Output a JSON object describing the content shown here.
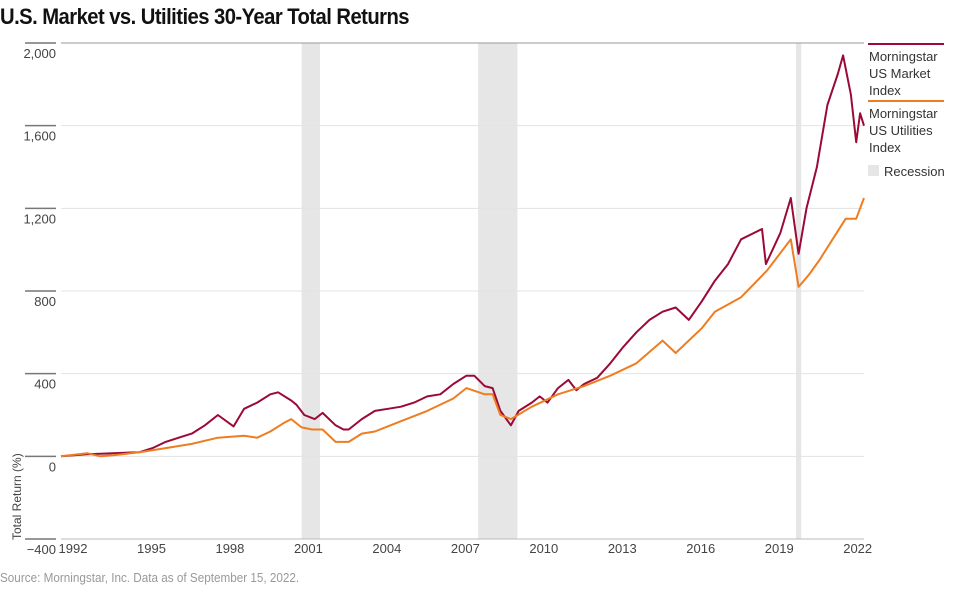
{
  "chart_data": {
    "type": "line",
    "title": "U.S. Market vs. Utilities 30-Year Total Returns",
    "ylabel": "Total Return (%)",
    "xlabel": "",
    "ylim": [
      -400,
      2000
    ],
    "yticks": [
      "2,000",
      "1,600",
      "1,200",
      "800",
      "400",
      "0",
      "−400"
    ],
    "ytick_values": [
      2000,
      1600,
      1200,
      800,
      400,
      0,
      -400
    ],
    "xlim": [
      1992,
      2022.7
    ],
    "xticks": [
      "1992",
      "1995",
      "1998",
      "2001",
      "2004",
      "2007",
      "2010",
      "2013",
      "2016",
      "2019",
      "2022"
    ],
    "grid": true,
    "legend_position": "right",
    "recessions": [
      [
        2001.2,
        2001.9
      ],
      [
        2007.95,
        2009.45
      ],
      [
        2020.1,
        2020.3
      ]
    ],
    "recession_label": "Recession",
    "recession_color": "#e6e6e6",
    "series": [
      {
        "name": "Morningstar US Market Index",
        "color": "#9b0a36",
        "x": [
          1992,
          1993,
          1994,
          1995,
          1995.5,
          1996,
          1996.5,
          1997,
          1997.5,
          1998,
          1998.6,
          1999,
          1999.5,
          2000,
          2000.3,
          2000.8,
          2001,
          2001.3,
          2001.7,
          2002,
          2002.5,
          2002.8,
          2003,
          2003.5,
          2004,
          2004.5,
          2005,
          2005.5,
          2006,
          2006.5,
          2007,
          2007.5,
          2007.8,
          2008.2,
          2008.5,
          2008.8,
          2009.2,
          2009.5,
          2010,
          2010.3,
          2010.6,
          2011,
          2011.4,
          2011.7,
          2012,
          2012.5,
          2013,
          2013.5,
          2014,
          2014.5,
          2015,
          2015.5,
          2016,
          2016.5,
          2017,
          2017.5,
          2018,
          2018.8,
          2018.95,
          2019.5,
          2019.9,
          2020.2,
          2020.5,
          2020.9,
          2021.3,
          2021.7,
          2021.9,
          2022.2,
          2022.4,
          2022.55,
          2022.7
        ],
        "y": [
          0,
          10,
          15,
          20,
          40,
          70,
          90,
          110,
          150,
          200,
          145,
          230,
          260,
          300,
          310,
          270,
          250,
          200,
          180,
          210,
          150,
          130,
          130,
          180,
          220,
          230,
          240,
          260,
          290,
          300,
          350,
          390,
          390,
          340,
          330,
          220,
          150,
          220,
          260,
          290,
          260,
          330,
          370,
          320,
          350,
          380,
          450,
          530,
          600,
          660,
          700,
          720,
          660,
          750,
          850,
          930,
          1050,
          1100,
          930,
          1080,
          1250,
          980,
          1200,
          1400,
          1700,
          1850,
          1940,
          1750,
          1520,
          1660,
          1600
        ]
      },
      {
        "name": "Morningstar US Utilities Index",
        "color": "#ee7d22",
        "x": [
          1992,
          1993,
          1993.5,
          1994,
          1995,
          1996,
          1997,
          1998,
          1999,
          1999.5,
          2000,
          2000.5,
          2000.8,
          2001.2,
          2001.6,
          2002,
          2002.5,
          2003,
          2003.5,
          2004,
          2005,
          2006,
          2007,
          2007.5,
          2008.2,
          2008.5,
          2008.8,
          2009.2,
          2010,
          2011,
          2012,
          2013,
          2014,
          2015,
          2015.5,
          2016.5,
          2017,
          2018,
          2019,
          2019.9,
          2020.2,
          2020.6,
          2021,
          2021.5,
          2022,
          2022.4,
          2022.7
        ],
        "y": [
          0,
          15,
          0,
          5,
          20,
          40,
          60,
          90,
          100,
          90,
          120,
          160,
          180,
          140,
          130,
          130,
          70,
          70,
          110,
          120,
          170,
          220,
          280,
          330,
          300,
          300,
          200,
          180,
          240,
          300,
          340,
          390,
          450,
          560,
          500,
          620,
          700,
          770,
          900,
          1050,
          820,
          880,
          950,
          1050,
          1150,
          1150,
          1250
        ]
      }
    ],
    "source": "Source: Morningstar, Inc. Data as of September 15, 2022."
  }
}
